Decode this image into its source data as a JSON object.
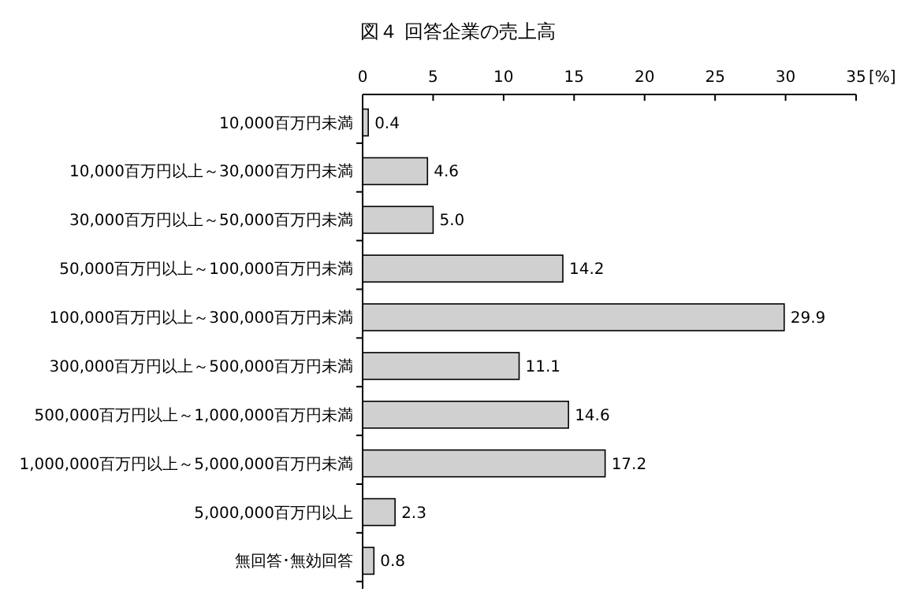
{
  "chart_data": {
    "type": "bar",
    "orientation": "horizontal",
    "title": "図４ 回答企業の売上高",
    "xlabel": "[%]",
    "categories": [
      "10,000百万円未満",
      "10,000百万円以上～30,000百万円未満",
      "30,000百万円以上～50,000百万円未満",
      "50,000百万円以上～100,000百万円未満",
      "100,000百万円以上～300,000百万円未満",
      "300,000百万円以上～500,000百万円未満",
      "500,000百万円以上～1,000,000百万円未満",
      "1,000,000百万円以上～5,000,000百万円未満",
      "5,000,000百万円以上",
      "無回答･無効回答"
    ],
    "values": [
      0.4,
      4.6,
      5.0,
      14.2,
      29.9,
      11.1,
      14.6,
      17.2,
      2.3,
      0.8
    ],
    "value_labels": [
      "0.4",
      "4.6",
      "5.0",
      "14.2",
      "29.9",
      "11.1",
      "14.6",
      "17.2",
      "2.3",
      "0.8"
    ],
    "color": "#d0d0d0",
    "xlim": [
      0,
      35
    ],
    "xticks": [
      0,
      5,
      10,
      15,
      20,
      25,
      30,
      35
    ],
    "grid": false
  }
}
